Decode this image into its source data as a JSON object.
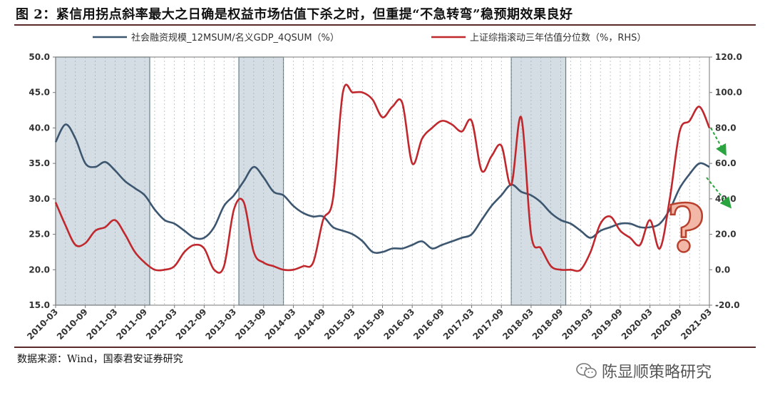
{
  "figure": {
    "title": "图 2：紧信用拐点斜率最大之日确是权益市场估值下杀之时，但重提“不急转弯”稳预期效果良好",
    "source": "数据来源：Wind，国泰君安证券研究",
    "watermark": "陈显顺策略研究"
  },
  "chart_data": {
    "type": "line",
    "x_ticks": [
      "2010-03",
      "2010-09",
      "2011-03",
      "2011-09",
      "2012-03",
      "2012-09",
      "2013-03",
      "2013-09",
      "2014-03",
      "2014-09",
      "2015-03",
      "2015-09",
      "2016-03",
      "2016-09",
      "2017-03",
      "2017-09",
      "2018-03",
      "2018-09",
      "2019-03",
      "2019-09",
      "2020-03",
      "2020-09",
      "2021-03"
    ],
    "y_left": {
      "ticks": [
        "15.0",
        "20.0",
        "25.0",
        "30.0",
        "35.0",
        "40.0",
        "45.0",
        "50.0"
      ],
      "ylim": [
        15,
        50
      ]
    },
    "y_right": {
      "ticks": [
        "-20.0",
        "0.0",
        "20.0",
        "40.0",
        "60.0",
        "80.0",
        "100.0",
        "120.0"
      ],
      "ylim": [
        -20,
        120
      ]
    },
    "grid": "vertical dashed",
    "legend_position": "top",
    "shaded_periods": [
      {
        "start": "2010-03",
        "end": "2011-10"
      },
      {
        "start": "2013-04",
        "end": "2014-01"
      },
      {
        "start": "2017-11",
        "end": "2018-10"
      }
    ],
    "series": [
      {
        "name": "社会融资规模_12MSUM/名义GDP_4QSUM（%）",
        "axis": "left",
        "color": "#3d5670",
        "x": [
          "2010-03",
          "2010-05",
          "2010-07",
          "2010-09",
          "2010-11",
          "2011-01",
          "2011-03",
          "2011-05",
          "2011-07",
          "2011-09",
          "2011-11",
          "2012-01",
          "2012-03",
          "2012-05",
          "2012-07",
          "2012-09",
          "2012-11",
          "2013-01",
          "2013-03",
          "2013-05",
          "2013-07",
          "2013-09",
          "2013-11",
          "2014-01",
          "2014-03",
          "2014-05",
          "2014-07",
          "2014-09",
          "2014-11",
          "2015-01",
          "2015-03",
          "2015-05",
          "2015-07",
          "2015-09",
          "2015-11",
          "2016-01",
          "2016-03",
          "2016-05",
          "2016-07",
          "2016-09",
          "2016-11",
          "2017-01",
          "2017-03",
          "2017-05",
          "2017-07",
          "2017-09",
          "2017-11",
          "2018-01",
          "2018-03",
          "2018-05",
          "2018-07",
          "2018-09",
          "2018-11",
          "2019-01",
          "2019-03",
          "2019-05",
          "2019-07",
          "2019-09",
          "2019-11",
          "2020-01",
          "2020-03",
          "2020-05",
          "2020-07",
          "2020-09",
          "2020-11",
          "2021-01",
          "2021-03"
        ],
        "values": [
          38.0,
          40.5,
          38.5,
          35.0,
          34.5,
          35.2,
          34.0,
          32.5,
          31.5,
          30.5,
          28.5,
          27.0,
          26.5,
          25.5,
          24.5,
          24.5,
          26.0,
          29.0,
          30.5,
          32.5,
          34.5,
          33.0,
          31.0,
          30.5,
          29.0,
          28.0,
          27.5,
          27.5,
          26.0,
          25.5,
          25.0,
          24.0,
          22.5,
          22.5,
          23.0,
          23.0,
          23.5,
          24.0,
          23.0,
          23.5,
          24.0,
          24.5,
          25.0,
          27.0,
          29.0,
          30.5,
          32.0,
          31.0,
          30.5,
          29.5,
          28.0,
          27.0,
          26.5,
          25.5,
          24.5,
          25.5,
          26.0,
          26.5,
          26.5,
          26.0,
          26.0,
          26.5,
          28.5,
          31.5,
          33.5,
          35.0,
          34.5
        ]
      },
      {
        "name": "上证综指滚动三年估值分位数（%，RHS）",
        "axis": "right",
        "color": "#c0282d",
        "x": [
          "2010-03",
          "2010-05",
          "2010-07",
          "2010-09",
          "2010-11",
          "2011-01",
          "2011-03",
          "2011-05",
          "2011-07",
          "2011-09",
          "2011-11",
          "2012-01",
          "2012-03",
          "2012-05",
          "2012-07",
          "2012-09",
          "2012-11",
          "2013-01",
          "2013-03",
          "2013-05",
          "2013-07",
          "2013-09",
          "2013-11",
          "2014-01",
          "2014-03",
          "2014-05",
          "2014-07",
          "2014-09",
          "2014-11",
          "2015-01",
          "2015-03",
          "2015-05",
          "2015-07",
          "2015-09",
          "2015-11",
          "2016-01",
          "2016-03",
          "2016-05",
          "2016-07",
          "2016-09",
          "2016-11",
          "2017-01",
          "2017-03",
          "2017-05",
          "2017-07",
          "2017-09",
          "2017-11",
          "2018-01",
          "2018-03",
          "2018-05",
          "2018-07",
          "2018-09",
          "2018-11",
          "2019-01",
          "2019-03",
          "2019-05",
          "2019-07",
          "2019-09",
          "2019-11",
          "2020-01",
          "2020-03",
          "2020-05",
          "2020-07",
          "2020-09",
          "2020-11",
          "2021-01",
          "2021-03"
        ],
        "values": [
          38.0,
          25.0,
          14.0,
          15.0,
          22.0,
          24.0,
          28.0,
          20.0,
          10.0,
          4.0,
          0.0,
          0.0,
          2.0,
          10.0,
          14.0,
          12.0,
          0.0,
          2.0,
          34.0,
          38.0,
          10.0,
          4.0,
          2.0,
          0.0,
          0.0,
          2.0,
          4.0,
          28.0,
          40.0,
          100.0,
          100.0,
          100.0,
          96.0,
          86.0,
          92.0,
          94.0,
          60.0,
          74.0,
          80.0,
          84.0,
          82.0,
          78.0,
          84.0,
          56.0,
          64.0,
          70.0,
          48.0,
          86.0,
          20.0,
          12.0,
          2.0,
          0.0,
          0.0,
          0.0,
          10.0,
          26.0,
          30.0,
          22.0,
          18.0,
          14.0,
          28.0,
          12.0,
          40.0,
          78.0,
          84.0,
          92.0,
          80.0
        ]
      }
    ],
    "annotations": [
      "?"
    ]
  },
  "colors": {
    "left_series": "#3d5670",
    "right_series": "#c0282d",
    "shade": "#d3dde3",
    "arrow": "#2aa43e"
  }
}
